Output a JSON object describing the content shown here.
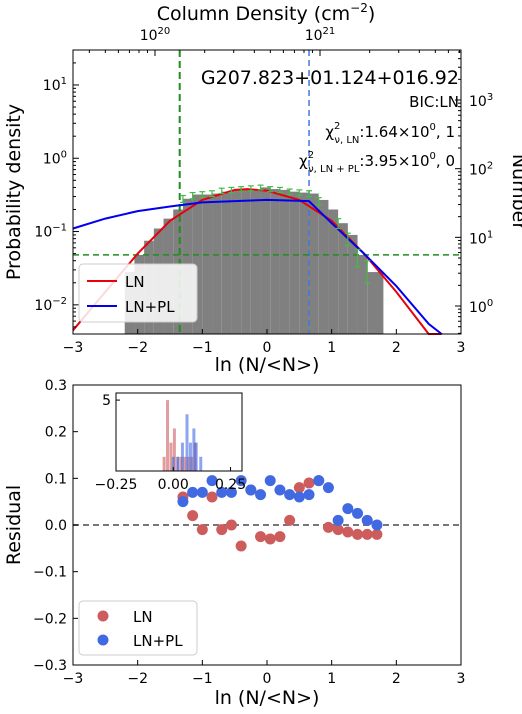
{
  "chart_data": [
    {
      "type": "bar",
      "panel": "top",
      "object_name": "G207.823+01.124+016.92",
      "annotations": {
        "bic": "BIC:LN",
        "chi_ln_label": "χ",
        "chi_ln_sup": "2",
        "chi_ln_sub": "ν, LN",
        "chi_ln_value": ":1.64×10",
        "chi_ln_exp": "0",
        "chi_ln_tail": ", 1",
        "chi_pl_label": "χ",
        "chi_pl_sup": "2",
        "chi_pl_sub": "ν, LN + PL",
        "chi_pl_value": ":3.95×10",
        "chi_pl_exp": "0",
        "chi_pl_tail": ", 0"
      },
      "xlabel": "ln (N/<N>)",
      "ylabel_left": "Probability density",
      "ylabel_right": "Number",
      "top_axis_label": "Column Density (cm",
      "top_axis_label_sup": "−2",
      "top_axis_label_end": ")",
      "xlim": [
        -3,
        3
      ],
      "ylim_log": [
        0.004,
        30
      ],
      "y_scale": "log",
      "x_ticks": [
        "−3",
        "−2",
        "−1",
        "0",
        "1",
        "2",
        "3"
      ],
      "y_ticks_left": [
        {
          "base": "10",
          "exp": "−2"
        },
        {
          "base": "10",
          "exp": "−1"
        },
        {
          "base": "10",
          "exp": "0"
        },
        {
          "base": "10",
          "exp": "1"
        }
      ],
      "y_ticks_right": [
        {
          "base": "10",
          "exp": "0"
        },
        {
          "base": "10",
          "exp": "1"
        },
        {
          "base": "10",
          "exp": "2"
        },
        {
          "base": "10",
          "exp": "3"
        }
      ],
      "top_ticks": [
        {
          "base": "10",
          "exp": "20"
        },
        {
          "base": "10",
          "exp": "21"
        }
      ],
      "histogram": {
        "bin_edges": [
          -2.2,
          -2.05,
          -1.9,
          -1.75,
          -1.6,
          -1.45,
          -1.3,
          -1.15,
          -1.0,
          -0.85,
          -0.7,
          -0.55,
          -0.4,
          -0.25,
          -0.1,
          0.05,
          0.2,
          0.35,
          0.5,
          0.65,
          0.8,
          0.95,
          1.1,
          1.25,
          1.4,
          1.55,
          1.8
        ],
        "density": [
          0.028,
          0.048,
          0.075,
          0.11,
          0.15,
          0.2,
          0.28,
          0.32,
          0.32,
          0.33,
          0.35,
          0.37,
          0.38,
          0.38,
          0.4,
          0.38,
          0.37,
          0.35,
          0.34,
          0.33,
          0.27,
          0.2,
          0.13,
          0.09,
          0.048,
          0.028
        ],
        "color": "#808080"
      },
      "error_bars": {
        "x": [
          -1.3,
          -1.15,
          -1.0,
          -0.85,
          -0.7,
          -0.55,
          -0.4,
          -0.25,
          -0.1,
          0.05,
          0.2,
          0.35,
          0.5,
          0.65,
          0.8,
          1.1,
          1.25,
          1.4,
          1.55
        ],
        "y": [
          0.28,
          0.31,
          0.32,
          0.33,
          0.36,
          0.37,
          0.38,
          0.39,
          0.4,
          0.38,
          0.37,
          0.35,
          0.34,
          0.33,
          0.26,
          0.13,
          0.08,
          0.045,
          0.03
        ],
        "err": [
          0.03,
          0.03,
          0.03,
          0.03,
          0.03,
          0.03,
          0.03,
          0.03,
          0.03,
          0.03,
          0.03,
          0.03,
          0.03,
          0.03,
          0.03,
          0.02,
          0.015,
          0.012,
          0.01
        ],
        "color": "#44bb44"
      },
      "series": [
        {
          "name": "LN",
          "color": "#e8000b",
          "x": [
            -3.0,
            -2.5,
            -2.0,
            -1.5,
            -1.0,
            -0.5,
            -0.3,
            0.0,
            0.5,
            1.0,
            1.5,
            2.0,
            2.5,
            2.7
          ],
          "y": [
            0.0045,
            0.015,
            0.05,
            0.14,
            0.27,
            0.37,
            0.38,
            0.36,
            0.27,
            0.14,
            0.05,
            0.015,
            0.004,
            0.0023
          ]
        },
        {
          "name": "LN+PL",
          "color": "#0000ee",
          "x": [
            -3.0,
            -2.5,
            -2.0,
            -1.5,
            -1.0,
            -0.5,
            0.0,
            0.65,
            1.0,
            1.5,
            2.0,
            2.5,
            2.7
          ],
          "y": [
            0.11,
            0.15,
            0.19,
            0.22,
            0.25,
            0.26,
            0.27,
            0.26,
            0.13,
            0.05,
            0.018,
            0.0055,
            0.0035
          ]
        }
      ],
      "reference_lines": {
        "green_vertical_x": -1.35,
        "blue_vertical_x": 0.65,
        "green_horizontal_y": 0.048,
        "green_color": "#228b22",
        "blue_color": "#4477dd"
      },
      "legend": {
        "position": "lower-left",
        "entries": [
          "LN",
          "LN+PL"
        ]
      }
    },
    {
      "type": "scatter",
      "panel": "bottom",
      "xlabel": "ln (N/<N>)",
      "ylabel": "Residual",
      "xlim": [
        -3,
        3
      ],
      "ylim": [
        -0.3,
        0.3
      ],
      "x_ticks": [
        "−3",
        "−2",
        "−1",
        "0",
        "1",
        "2",
        "3"
      ],
      "y_ticks": [
        "−0.3",
        "−0.2",
        "−0.1",
        "0.0",
        "0.1",
        "0.2",
        "0.3"
      ],
      "series": [
        {
          "name": "LN",
          "color": "#cd5c5c",
          "x": [
            -1.3,
            -1.15,
            -1.0,
            -0.85,
            -0.7,
            -0.55,
            -0.4,
            -0.25,
            -0.1,
            0.05,
            0.2,
            0.35,
            0.5,
            0.65,
            0.8,
            0.95,
            1.1,
            1.25,
            1.4,
            1.55,
            1.7
          ],
          "y": [
            0.06,
            0.02,
            -0.01,
            0.06,
            -0.01,
            0.0,
            -0.045,
            0.075,
            -0.025,
            -0.03,
            -0.025,
            0.01,
            0.08,
            0.09,
            0.095,
            -0.005,
            -0.01,
            -0.015,
            -0.02,
            -0.02,
            -0.02
          ]
        },
        {
          "name": "LN+PL",
          "color": "#4169e1",
          "x": [
            -1.3,
            -1.15,
            -1.0,
            -0.85,
            -0.7,
            -0.55,
            -0.4,
            -0.25,
            -0.1,
            0.05,
            0.2,
            0.35,
            0.5,
            0.65,
            0.8,
            0.95,
            1.1,
            1.25,
            1.4,
            1.55,
            1.7
          ],
          "y": [
            0.05,
            0.07,
            0.07,
            0.095,
            0.07,
            0.07,
            0.095,
            0.075,
            0.065,
            0.095,
            0.075,
            0.065,
            0.06,
            0.065,
            0.095,
            0.08,
            0.01,
            0.035,
            0.025,
            0.01,
            0.0
          ]
        }
      ],
      "zero_line": 0,
      "legend": {
        "position": "lower-left",
        "entries": [
          "LN",
          "LN+PL"
        ]
      },
      "inset": {
        "type": "histogram",
        "xlim": [
          -0.25,
          0.3
        ],
        "ylim": [
          0,
          5.5
        ],
        "x_ticks": [
          "−0.25",
          "0.00",
          "0.25"
        ],
        "y_ticks": [
          "5"
        ],
        "series": [
          {
            "name": "LN",
            "color": "#cd5c5c",
            "x": [
              -0.04,
              -0.025,
              -0.01,
              0.005,
              0.02,
              0.035,
              0.05,
              0.065,
              0.08,
              0.095
            ],
            "counts": [
              1,
              5,
              2,
              3,
              1,
              1,
              1,
              1,
              1,
              2
            ]
          },
          {
            "name": "LN+PL",
            "color": "#4169e1",
            "x": [
              0.0,
              0.02,
              0.04,
              0.06,
              0.075,
              0.09,
              0.1,
              0.12
            ],
            "counts": [
              1,
              1,
              2,
              4,
              2,
              3,
              2,
              1
            ]
          }
        ]
      }
    }
  ]
}
